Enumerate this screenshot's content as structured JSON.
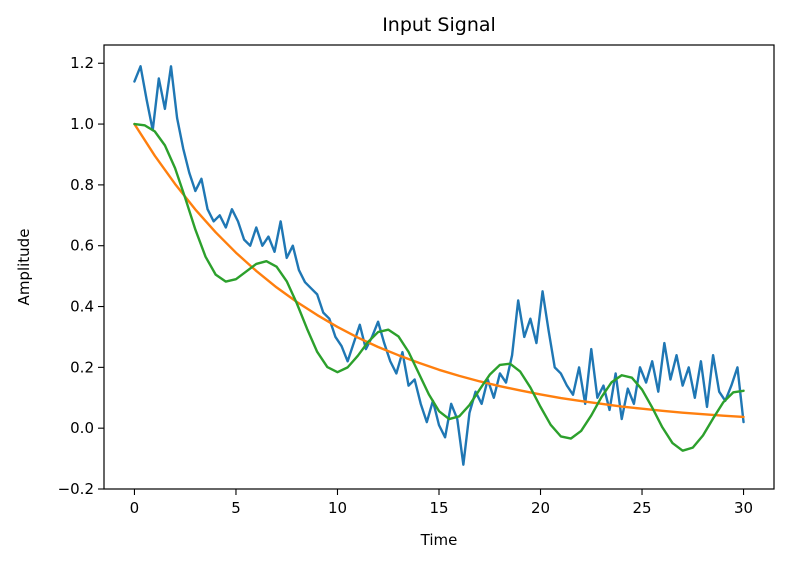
{
  "chart_data": {
    "type": "line",
    "title": "Input Signal",
    "xlabel": "Time",
    "ylabel": "Amplitude",
    "xlim": [
      -1.5,
      31.5
    ],
    "ylim": [
      -0.2,
      1.26
    ],
    "x_ticks": [
      0,
      5,
      10,
      15,
      20,
      25,
      30
    ],
    "x_tick_labels": [
      "0",
      "5",
      "10",
      "15",
      "20",
      "25",
      "30"
    ],
    "y_ticks": [
      -0.2,
      0.0,
      0.2,
      0.4,
      0.6,
      0.8,
      1.0,
      1.2
    ],
    "y_tick_labels": [
      "−0.2",
      "0.0",
      "0.2",
      "0.4",
      "0.6",
      "0.8",
      "1.0",
      "1.2"
    ],
    "grid": false,
    "legend": "none",
    "series": [
      {
        "color": "#1f77b4",
        "style": "noisy",
        "x": [
          0,
          0.3,
          0.6,
          0.9,
          1.2,
          1.5,
          1.8,
          2.1,
          2.4,
          2.7,
          3.0,
          3.3,
          3.6,
          3.9,
          4.2,
          4.5,
          4.8,
          5.1,
          5.4,
          5.7,
          6.0,
          6.3,
          6.6,
          6.9,
          7.2,
          7.5,
          7.8,
          8.1,
          8.4,
          8.7,
          9.0,
          9.3,
          9.6,
          9.9,
          10.2,
          10.5,
          10.8,
          11.1,
          11.4,
          11.7,
          12.0,
          12.3,
          12.6,
          12.9,
          13.2,
          13.5,
          13.8,
          14.1,
          14.4,
          14.7,
          15.0,
          15.3,
          15.6,
          15.9,
          16.2,
          16.5,
          16.8,
          17.1,
          17.4,
          17.7,
          18.0,
          18.3,
          18.6,
          18.9,
          19.2,
          19.5,
          19.8,
          20.1,
          20.4,
          20.7,
          21.0,
          21.3,
          21.6,
          21.9,
          22.2,
          22.5,
          22.8,
          23.1,
          23.4,
          23.7,
          24.0,
          24.3,
          24.6,
          24.9,
          25.2,
          25.5,
          25.8,
          26.1,
          26.4,
          26.7,
          27.0,
          27.3,
          27.6,
          27.9,
          28.2,
          28.5,
          28.8,
          29.1,
          29.4,
          29.7,
          30.0
        ],
        "y": [
          1.14,
          1.19,
          1.08,
          0.98,
          1.15,
          1.05,
          1.19,
          1.02,
          0.92,
          0.84,
          0.78,
          0.82,
          0.72,
          0.68,
          0.7,
          0.66,
          0.72,
          0.68,
          0.62,
          0.6,
          0.66,
          0.6,
          0.63,
          0.58,
          0.68,
          0.56,
          0.6,
          0.52,
          0.48,
          0.46,
          0.44,
          0.38,
          0.36,
          0.3,
          0.27,
          0.22,
          0.28,
          0.34,
          0.26,
          0.3,
          0.35,
          0.28,
          0.22,
          0.18,
          0.25,
          0.14,
          0.16,
          0.08,
          0.02,
          0.09,
          0.01,
          -0.03,
          0.08,
          0.03,
          -0.12,
          0.05,
          0.12,
          0.08,
          0.16,
          0.1,
          0.18,
          0.15,
          0.24,
          0.42,
          0.3,
          0.36,
          0.28,
          0.45,
          0.32,
          0.2,
          0.18,
          0.14,
          0.11,
          0.2,
          0.08,
          0.26,
          0.1,
          0.14,
          0.06,
          0.18,
          0.03,
          0.13,
          0.08,
          0.2,
          0.15,
          0.22,
          0.12,
          0.28,
          0.16,
          0.24,
          0.14,
          0.2,
          0.1,
          0.22,
          0.07,
          0.24,
          0.12,
          0.09,
          0.14,
          0.2,
          0.02
        ]
      },
      {
        "color": "#ff7f0e",
        "style": "exponential",
        "x": [
          0,
          1,
          2,
          3,
          4,
          5,
          6,
          7,
          8,
          9,
          10,
          11,
          12,
          13,
          14,
          15,
          16,
          17,
          18,
          19,
          20,
          21,
          22,
          23,
          24,
          25,
          26,
          27,
          28,
          29,
          30
        ],
        "y": [
          1.0,
          0.896,
          0.803,
          0.719,
          0.644,
          0.577,
          0.517,
          0.463,
          0.415,
          0.372,
          0.333,
          0.298,
          0.267,
          0.24,
          0.215,
          0.192,
          0.172,
          0.154,
          0.138,
          0.124,
          0.111,
          0.099,
          0.089,
          0.08,
          0.071,
          0.064,
          0.057,
          0.051,
          0.046,
          0.041,
          0.037
        ]
      },
      {
        "color": "#2ca02c",
        "style": "damped-oscillation",
        "x": [
          0,
          0.5,
          1,
          1.5,
          2,
          2.5,
          3,
          3.5,
          4,
          4.5,
          5,
          5.5,
          6,
          6.5,
          7,
          7.5,
          8,
          8.5,
          9,
          9.5,
          10,
          10.5,
          11,
          11.5,
          12,
          12.5,
          13,
          13.5,
          14,
          14.5,
          15,
          15.5,
          16,
          16.5,
          17,
          17.5,
          18,
          18.5,
          19,
          19.5,
          20,
          20.5,
          21,
          21.5,
          22,
          22.5,
          23,
          23.5,
          24,
          24.5,
          25,
          25.5,
          26,
          26.5,
          27,
          27.5,
          28,
          28.5,
          29,
          29.5,
          30
        ],
        "y": [
          1.0,
          0.996,
          0.976,
          0.93,
          0.855,
          0.757,
          0.653,
          0.564,
          0.505,
          0.482,
          0.49,
          0.515,
          0.54,
          0.549,
          0.531,
          0.483,
          0.41,
          0.327,
          0.251,
          0.201,
          0.184,
          0.2,
          0.238,
          0.283,
          0.316,
          0.324,
          0.302,
          0.251,
          0.181,
          0.111,
          0.056,
          0.03,
          0.039,
          0.076,
          0.127,
          0.176,
          0.208,
          0.212,
          0.186,
          0.134,
          0.07,
          0.011,
          -0.027,
          -0.034,
          -0.009,
          0.042,
          0.102,
          0.151,
          0.174,
          0.166,
          0.127,
          0.068,
          0.003,
          -0.049,
          -0.074,
          -0.064,
          -0.024,
          0.032,
          0.085,
          0.118,
          0.123
        ]
      }
    ]
  }
}
